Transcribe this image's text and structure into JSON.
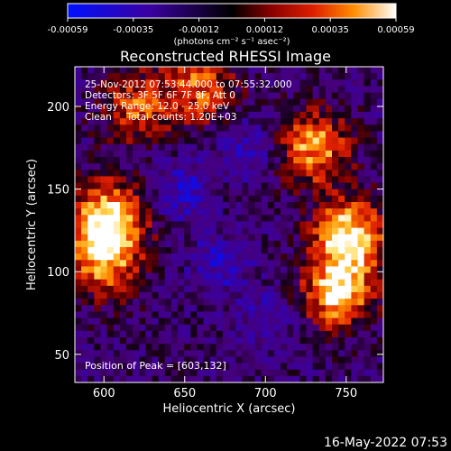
{
  "colorbar": {
    "ticks": [
      "-0.00059",
      "-0.00035",
      "-0.00012",
      "0.00012",
      "0.00035",
      "0.00059"
    ],
    "unit_label": "(photons cm⁻² s⁻¹ asec⁻²)",
    "colors": [
      "#0010ff",
      "#2000c8",
      "#3a0088",
      "#000000",
      "#7a0000",
      "#d01000",
      "#ff5000",
      "#ffa000",
      "#ffe070",
      "#ffffff"
    ]
  },
  "chart_data": {
    "type": "heatmap",
    "title": "Reconstructed RHESSI Image",
    "xlabel": "Heliocentric X (arcsec)",
    "ylabel": "Heliocentric Y (arcsec)",
    "xlim": [
      582,
      773
    ],
    "ylim": [
      33,
      224
    ],
    "xticks": [
      600,
      650,
      700,
      750
    ],
    "yticks": [
      50,
      100,
      150,
      200
    ],
    "annotations": [
      "25-Nov-2012 07:53:44.000 to 07:55:32.000",
      "Detectors: 3F 5F 6F 7F 8F, Att 0",
      "Energy Range: 12.0 - 25.0 keV",
      "Clean     Total counts: 1.20E+03"
    ],
    "peak_label": "Position of Peak = [603,132]",
    "peak_position": [
      603,
      132
    ],
    "hotspots": [
      {
        "x": 603,
        "y": 132,
        "intensity": 1.0
      },
      {
        "x": 752,
        "y": 122,
        "intensity": 0.95
      },
      {
        "x": 745,
        "y": 88,
        "intensity": 0.85
      },
      {
        "x": 730,
        "y": 175,
        "intensity": 0.7
      },
      {
        "x": 600,
        "y": 105,
        "intensity": 0.55
      },
      {
        "x": 660,
        "y": 212,
        "intensity": 0.5
      },
      {
        "x": 620,
        "y": 200,
        "intensity": 0.45
      }
    ],
    "coldspots": [
      {
        "x": 648,
        "y": 150,
        "intensity": -0.9
      },
      {
        "x": 672,
        "y": 105,
        "intensity": -0.8
      },
      {
        "x": 690,
        "y": 175,
        "intensity": -0.7
      },
      {
        "x": 700,
        "y": 70,
        "intensity": -0.6
      }
    ]
  },
  "footer_timestamp": "16-May-2022 07:53"
}
